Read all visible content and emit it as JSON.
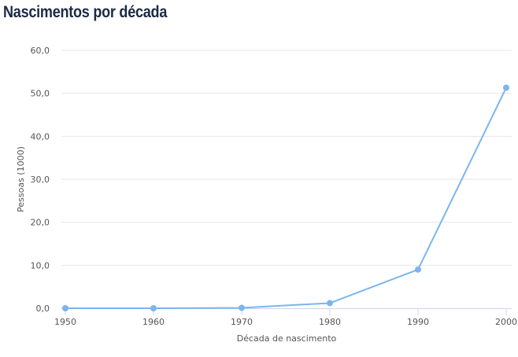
{
  "title": "Nascimentos por década",
  "chart_data": {
    "type": "line",
    "title": "Nascimentos por década",
    "xlabel": "Década de nascimento",
    "ylabel": "Pessoas (1000)",
    "x": [
      "1950",
      "1960",
      "1970",
      "1980",
      "1990",
      "2000"
    ],
    "series": [
      {
        "values": [
          0.0,
          0.0,
          0.1,
          1.2,
          9.0,
          51.3
        ]
      }
    ],
    "ylim": [
      0,
      60
    ],
    "y_ticks": [
      "0,0",
      "10,0",
      "20,0",
      "30,0",
      "40,0",
      "50,0",
      "60,0"
    ],
    "grid": true,
    "legend": "none",
    "line_color": "#7cb5ec"
  }
}
